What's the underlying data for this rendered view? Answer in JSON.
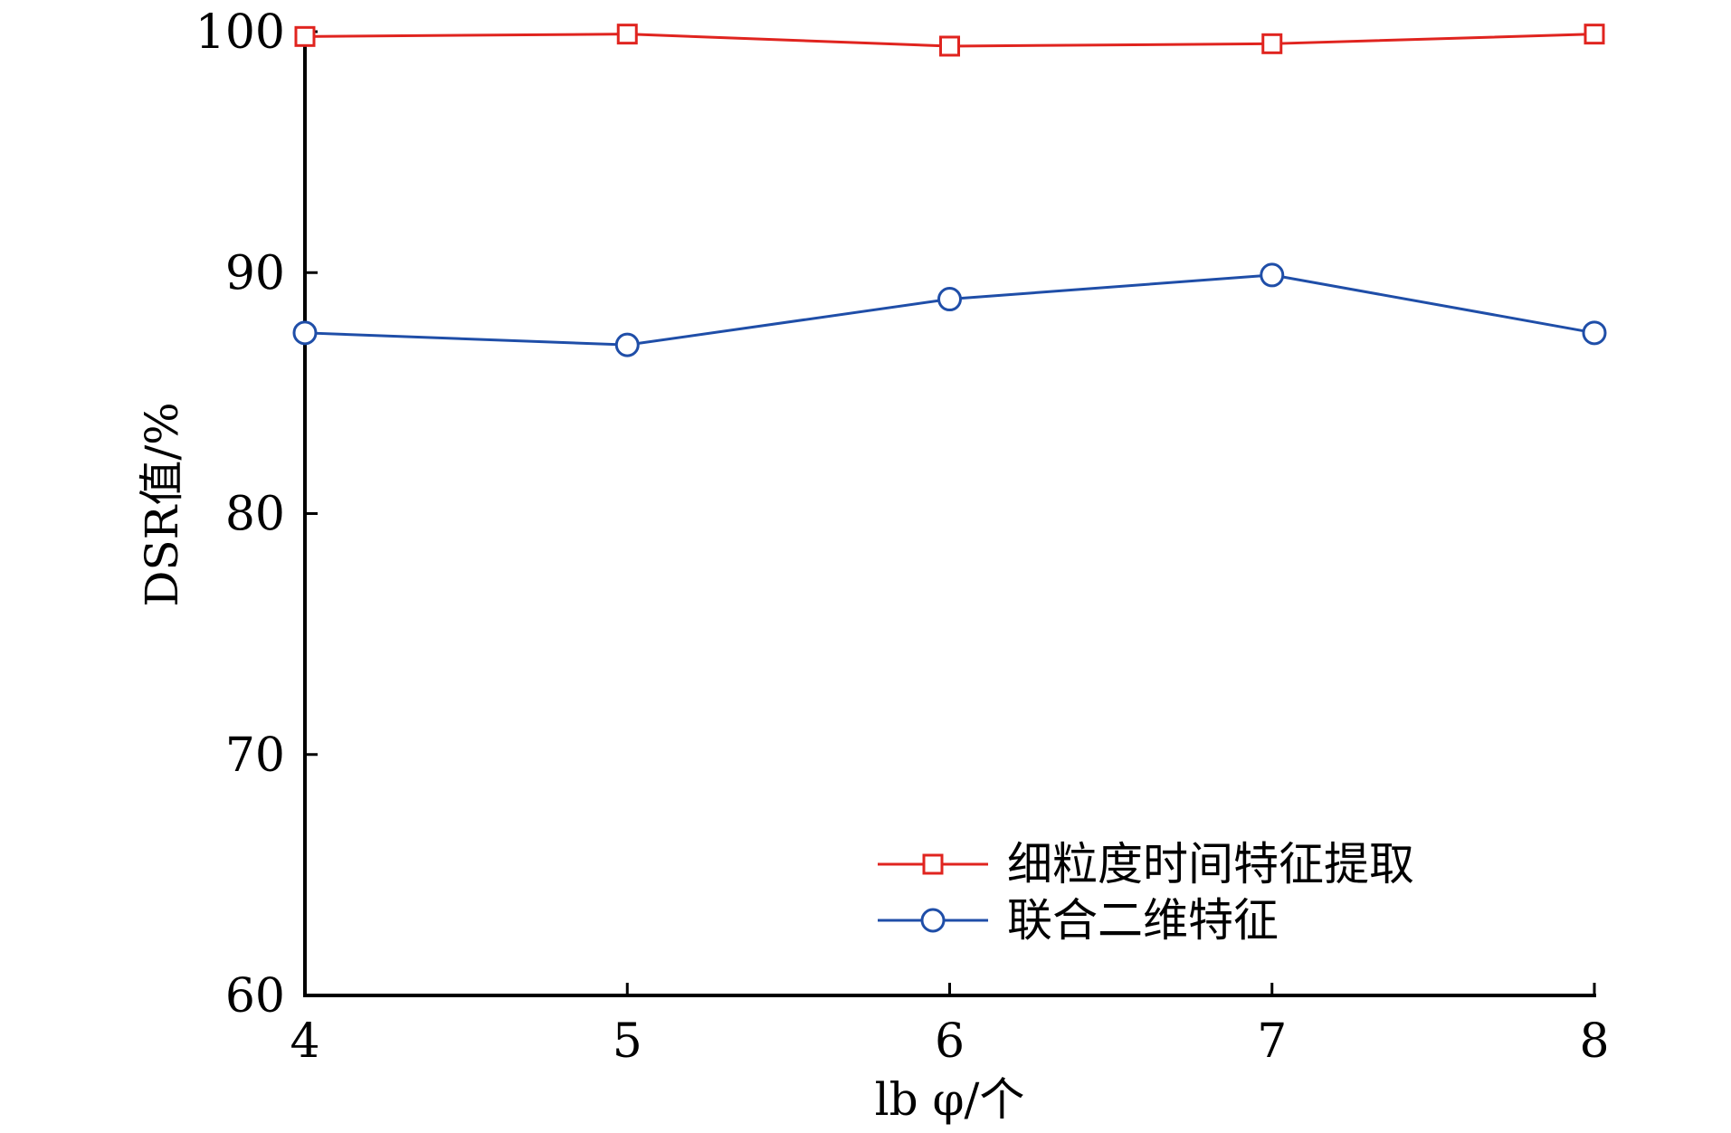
{
  "chart_data": {
    "type": "line",
    "title": "",
    "xlabel": "lb φ/个",
    "ylabel": "DSR值/%",
    "x": [
      4,
      5,
      6,
      7,
      8
    ],
    "xticks": [
      "4",
      "5",
      "6",
      "7",
      "8"
    ],
    "yticks": [
      "60",
      "70",
      "80",
      "90",
      "100"
    ],
    "xlim": [
      4,
      8
    ],
    "ylim": [
      60,
      100
    ],
    "grid": false,
    "legend_position": "bottom-right",
    "series": [
      {
        "name": "细粒度时间特征提取",
        "values": [
          99.8,
          99.9,
          99.4,
          99.5,
          99.9
        ],
        "color": "#e0241f",
        "marker": "square-icon"
      },
      {
        "name": "联合二维特征",
        "values": [
          87.5,
          87.0,
          88.9,
          89.9,
          87.5
        ],
        "color": "#1f4ea8",
        "marker": "circle-icon"
      }
    ]
  }
}
